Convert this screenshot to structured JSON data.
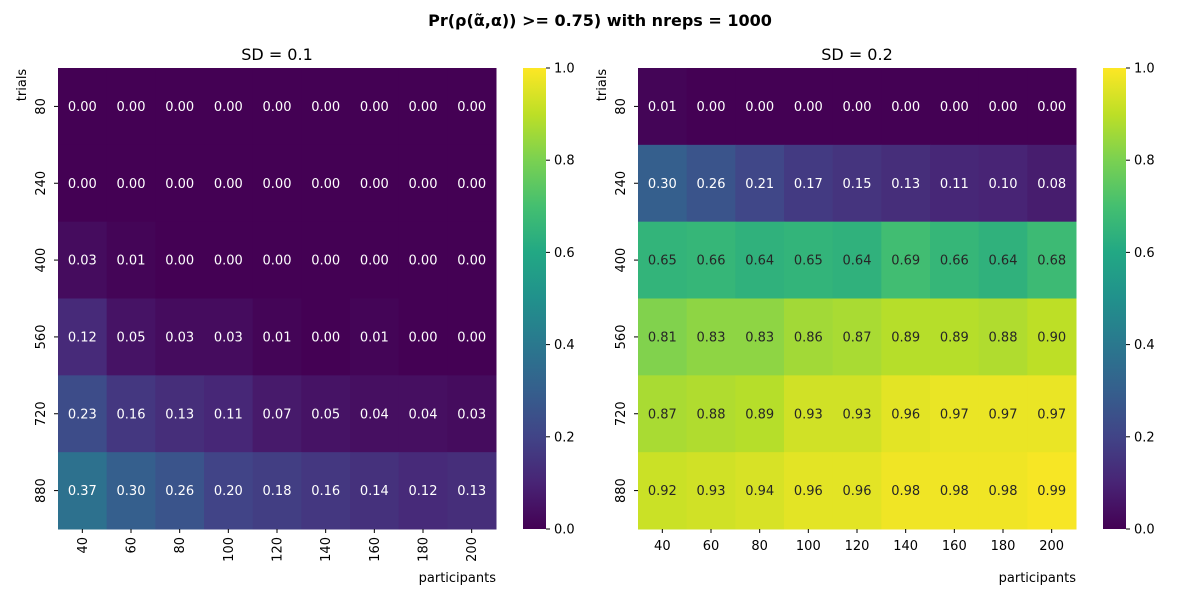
{
  "suptitle": "Pr(ρ(α̃,α)) >= 0.75) with nreps = 1000",
  "chart_data": [
    {
      "type": "heatmap",
      "title": "SD = 0.1",
      "xlabel": "participants",
      "ylabel": "trials",
      "x": [
        "40",
        "60",
        "80",
        "100",
        "120",
        "140",
        "160",
        "180",
        "200"
      ],
      "y": [
        "80",
        "240",
        "400",
        "560",
        "720",
        "880"
      ],
      "values": [
        [
          0.0,
          0.0,
          0.0,
          0.0,
          0.0,
          0.0,
          0.0,
          0.0,
          0.0
        ],
        [
          0.0,
          0.0,
          0.0,
          0.0,
          0.0,
          0.0,
          0.0,
          0.0,
          0.0
        ],
        [
          0.03,
          0.01,
          0.0,
          0.0,
          0.0,
          0.0,
          0.0,
          0.0,
          0.0
        ],
        [
          0.12,
          0.05,
          0.03,
          0.03,
          0.01,
          0.0,
          0.01,
          0.0,
          0.0
        ],
        [
          0.23,
          0.16,
          0.13,
          0.11,
          0.07,
          0.05,
          0.04,
          0.04,
          0.03
        ],
        [
          0.37,
          0.3,
          0.26,
          0.2,
          0.18,
          0.16,
          0.14,
          0.12,
          0.13
        ]
      ],
      "xtick_rotation": 90,
      "colorbar": {
        "colormap": "viridis",
        "range": [
          0.0,
          1.0
        ],
        "ticks": [
          "0.0",
          "0.2",
          "0.4",
          "0.6",
          "0.8",
          "1.0"
        ]
      }
    },
    {
      "type": "heatmap",
      "title": "SD = 0.2",
      "xlabel": "participants",
      "ylabel": "trials",
      "x": [
        "40",
        "60",
        "80",
        "100",
        "120",
        "140",
        "160",
        "180",
        "200"
      ],
      "y": [
        "80",
        "240",
        "400",
        "560",
        "720",
        "880"
      ],
      "values": [
        [
          0.01,
          0.0,
          0.0,
          0.0,
          0.0,
          0.0,
          0.0,
          0.0,
          0.0
        ],
        [
          0.3,
          0.26,
          0.21,
          0.17,
          0.15,
          0.13,
          0.11,
          0.1,
          0.08
        ],
        [
          0.65,
          0.66,
          0.64,
          0.65,
          0.64,
          0.69,
          0.66,
          0.64,
          0.68
        ],
        [
          0.81,
          0.83,
          0.83,
          0.86,
          0.87,
          0.89,
          0.89,
          0.88,
          0.9
        ],
        [
          0.87,
          0.88,
          0.89,
          0.93,
          0.93,
          0.96,
          0.97,
          0.97,
          0.97
        ],
        [
          0.92,
          0.93,
          0.94,
          0.96,
          0.96,
          0.98,
          0.98,
          0.98,
          0.99
        ]
      ],
      "xtick_rotation": 0,
      "colorbar": {
        "colormap": "viridis",
        "range": [
          0.0,
          1.0
        ],
        "ticks": [
          "0.0",
          "0.2",
          "0.4",
          "0.6",
          "0.8",
          "1.0"
        ]
      }
    }
  ]
}
